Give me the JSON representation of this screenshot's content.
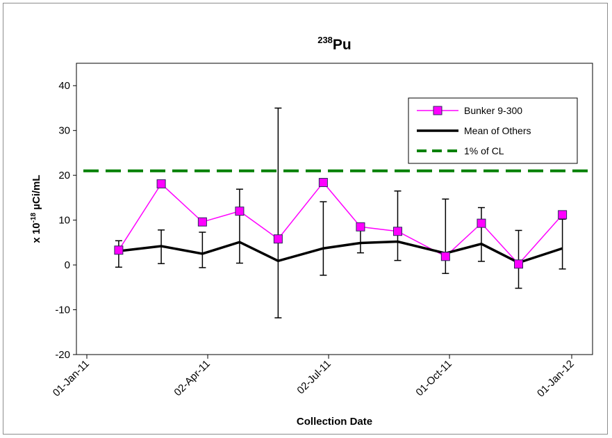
{
  "chart_data": {
    "type": "line",
    "title": {
      "sup": "238",
      "main": "Pu"
    },
    "xlabel": "Collection Date",
    "ylabel": {
      "prefix": "x 10",
      "sup": "-18",
      "suffix": " µCi/mL"
    },
    "ylim": [
      -20,
      45
    ],
    "yticks": [
      -20,
      -10,
      0,
      10,
      20,
      30,
      40
    ],
    "xlim_days": [
      0,
      365
    ],
    "xticks": [
      {
        "label": "01-Jan-11",
        "day": 0
      },
      {
        "label": "02-Apr-11",
        "day": 91
      },
      {
        "label": "02-Jul-11",
        "day": 182
      },
      {
        "label": "01-Oct-11",
        "day": 273
      },
      {
        "label": "01-Jan-12",
        "day": 365
      }
    ],
    "grid": false,
    "legend_position": "top-right",
    "series": [
      {
        "name": "Bunker 9-300",
        "color": "#ff00ff",
        "marker_color": "#ff00ff",
        "x_days": [
          24,
          56,
          87,
          115,
          144,
          178,
          206,
          234,
          270,
          297,
          325,
          358
        ],
        "values": [
          3.3,
          18.1,
          9.6,
          12.0,
          5.8,
          18.4,
          8.5,
          7.5,
          1.9,
          9.3,
          0.2,
          11.2
        ]
      },
      {
        "name": "Mean of Others",
        "color": "#000000",
        "x_days": [
          24,
          56,
          87,
          115,
          144,
          178,
          206,
          234,
          270,
          297,
          325,
          358
        ],
        "values": [
          3.1,
          4.2,
          2.5,
          5.1,
          0.9,
          3.7,
          4.9,
          5.2,
          2.6,
          4.7,
          0.5,
          3.7
        ],
        "error_low": [
          -0.5,
          0.3,
          -0.6,
          0.4,
          -11.8,
          -2.3,
          2.7,
          1.0,
          -1.9,
          0.8,
          -5.2,
          -0.9
        ],
        "error_high": [
          5.4,
          7.8,
          7.3,
          16.9,
          35.0,
          14.1,
          8.6,
          16.5,
          14.7,
          12.8,
          7.7,
          10.2
        ]
      },
      {
        "name": "1% of CL",
        "color": "#008000",
        "style": "dashed",
        "value": 21.0
      }
    ]
  }
}
